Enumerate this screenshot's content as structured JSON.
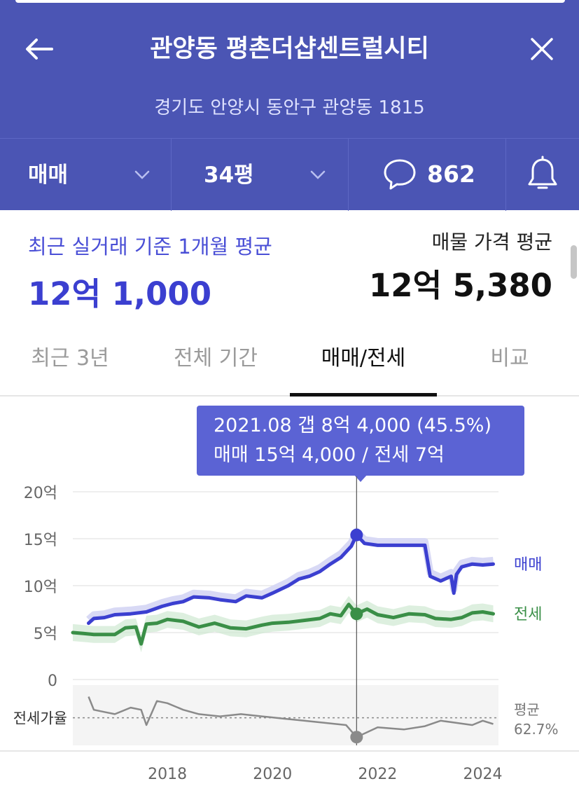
{
  "header": {
    "title": "관양동 평촌더샵센트럴시티",
    "address": "경기도 안양시 동안구 관양동 1815",
    "deal_type": "매매",
    "area": "34평",
    "comment_count": "862"
  },
  "summary": {
    "recent_label": "최근 실거래 기준 1개월 평균",
    "recent_value": "12억 1,000",
    "listing_label": "매물 가격 평균",
    "listing_value": "12억 5,380"
  },
  "tabs": [
    {
      "label": "최근 3년",
      "active": false
    },
    {
      "label": "전체 기간",
      "active": false
    },
    {
      "label": "매매/전세",
      "active": true
    },
    {
      "label": "비교",
      "active": false
    }
  ],
  "tooltip": {
    "line1": "2021.08  갭 8억 4,000 (45.5%)",
    "line2": "매매 15억 4,000 / 전세 7억"
  },
  "colors": {
    "header_bg": "#4b55b4",
    "sale": "#3b3fd0",
    "jeonse": "#3a8f47",
    "ratio": "#8a8a8a"
  },
  "chart_data": {
    "type": "line",
    "ylabel_ticks": [
      "20억",
      "15억",
      "10억",
      "5억",
      "0"
    ],
    "y_ticks": [
      20,
      15,
      10,
      5,
      0
    ],
    "ylim": [
      0,
      20
    ],
    "x_ticks": [
      "2018",
      "2020",
      "2022",
      "2024"
    ],
    "x_tick_values": [
      2018,
      2020,
      2022,
      2024
    ],
    "xlim": [
      2016.2,
      2024.3
    ],
    "grid": true,
    "highlight": {
      "x": 2021.6,
      "sale": 15.4,
      "jeonse": 7.0
    },
    "series": [
      {
        "name": "매매",
        "color": "#3b3fd0",
        "x": [
          2016.5,
          2016.6,
          2016.8,
          2017.0,
          2017.3,
          2017.6,
          2017.9,
          2018.1,
          2018.3,
          2018.5,
          2018.8,
          2019.0,
          2019.3,
          2019.5,
          2019.8,
          2020.0,
          2020.3,
          2020.5,
          2020.7,
          2020.9,
          2021.1,
          2021.3,
          2021.5,
          2021.6,
          2021.75,
          2022.0,
          2022.5,
          2022.9,
          2023.0,
          2023.2,
          2023.4,
          2023.45,
          2023.5,
          2023.6,
          2023.8,
          2024.0,
          2024.2
        ],
        "values": [
          6.0,
          6.5,
          6.6,
          6.9,
          7.0,
          7.2,
          7.8,
          8.1,
          8.3,
          8.8,
          8.7,
          8.5,
          8.3,
          8.9,
          8.7,
          9.2,
          10.0,
          10.7,
          11.0,
          11.5,
          12.3,
          13.0,
          14.2,
          15.4,
          14.5,
          14.3,
          14.3,
          14.3,
          11.0,
          10.5,
          11.0,
          9.2,
          11.2,
          12.0,
          12.3,
          12.2,
          12.3
        ]
      },
      {
        "name": "전세",
        "color": "#3a8f47",
        "x": [
          2016.2,
          2016.4,
          2016.6,
          2016.8,
          2017.0,
          2017.2,
          2017.4,
          2017.5,
          2017.6,
          2017.8,
          2018.0,
          2018.3,
          2018.6,
          2018.9,
          2019.2,
          2019.5,
          2019.8,
          2020.0,
          2020.3,
          2020.6,
          2020.9,
          2021.1,
          2021.3,
          2021.45,
          2021.6,
          2021.8,
          2022.0,
          2022.3,
          2022.6,
          2022.9,
          2023.1,
          2023.4,
          2023.6,
          2023.8,
          2024.0,
          2024.2
        ],
        "values": [
          5.0,
          4.9,
          4.8,
          4.8,
          4.8,
          5.5,
          5.6,
          3.8,
          5.9,
          6.0,
          6.4,
          6.2,
          5.6,
          6.0,
          5.5,
          5.4,
          5.8,
          6.0,
          6.1,
          6.3,
          6.5,
          7.0,
          6.8,
          8.0,
          7.0,
          7.5,
          6.9,
          6.6,
          7.0,
          6.9,
          6.5,
          6.4,
          6.6,
          7.1,
          7.2,
          7.0
        ]
      }
    ],
    "ratio": {
      "label": "전세가율",
      "average_label": "평균",
      "average_value": "62.7%",
      "x": [
        2016.5,
        2016.6,
        2016.8,
        2017.0,
        2017.3,
        2017.5,
        2017.6,
        2017.8,
        2018.0,
        2018.3,
        2018.6,
        2019.0,
        2019.4,
        2019.8,
        2020.2,
        2020.6,
        2021.0,
        2021.4,
        2021.6,
        2022.0,
        2022.5,
        2022.9,
        2023.2,
        2023.5,
        2023.8,
        2024.0,
        2024.2
      ],
      "values": [
        82,
        70,
        68,
        66,
        72,
        70,
        56,
        78,
        76,
        70,
        66,
        64,
        66,
        64,
        62,
        60,
        58,
        56,
        45,
        54,
        52,
        55,
        60,
        58,
        56,
        60,
        57
      ],
      "average": 62.7,
      "range": [
        40,
        90
      ]
    }
  }
}
